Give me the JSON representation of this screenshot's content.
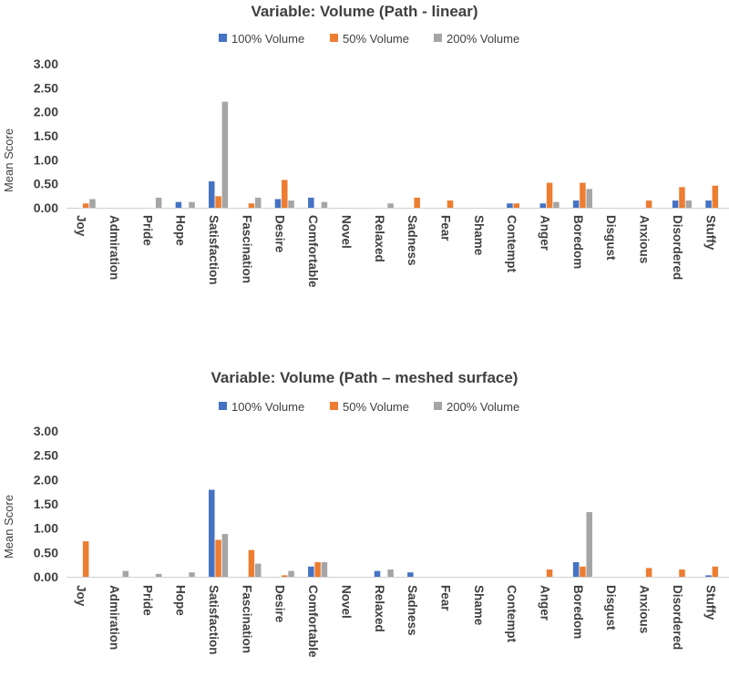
{
  "chart_data": [
    {
      "type": "bar",
      "title": "Variable: Volume (Path - linear)",
      "xlabel": "",
      "ylabel": "Mean Score",
      "ylim": [
        0,
        3
      ],
      "yticks": [
        "0.00",
        "0.50",
        "1.00",
        "1.50",
        "2.00",
        "2.50",
        "3.00"
      ],
      "legend_position": "top-center",
      "categories": [
        "Joy",
        "Admiration",
        "Pride",
        "Hope",
        "Satisfaction",
        "Fascination",
        "Desire",
        "Comfortable",
        "Novel",
        "Relaxed",
        "Sadness",
        "Fear",
        "Shame",
        "Contempt",
        "Anger",
        "Boredom",
        "Disgust",
        "Anxious",
        "Disordered",
        "Stuffy"
      ],
      "series": [
        {
          "name": "100% Volume",
          "color": "#4472C4",
          "values": [
            0,
            0,
            0,
            0.12,
            0.55,
            0,
            0.18,
            0.21,
            0,
            0,
            0,
            0,
            0,
            0.09,
            0.09,
            0.15,
            0,
            0,
            0.15,
            0.15
          ]
        },
        {
          "name": "50% Volume",
          "color": "#ED7D31",
          "values": [
            0.09,
            0,
            0,
            0,
            0.24,
            0.09,
            0.58,
            0,
            0,
            0,
            0.21,
            0.15,
            0,
            0.09,
            0.52,
            0.52,
            0,
            0.15,
            0.43,
            0.46
          ]
        },
        {
          "name": "200% Volume",
          "color": "#A5A5A5",
          "values": [
            0.18,
            0,
            0.21,
            0.12,
            2.21,
            0.21,
            0.15,
            0.12,
            0,
            0.09,
            0,
            0,
            0,
            0,
            0.12,
            0.39,
            0,
            0,
            0.15,
            0
          ]
        }
      ]
    },
    {
      "type": "bar",
      "title": "Variable: Volume (Path – meshed surface)",
      "xlabel": "",
      "ylabel": "Mean Score",
      "ylim": [
        0,
        3
      ],
      "yticks": [
        "0.00",
        "0.50",
        "1.00",
        "1.50",
        "2.00",
        "2.50",
        "3.00"
      ],
      "legend_position": "top-center",
      "categories": [
        "Joy",
        "Admiration",
        "Pride",
        "Hope",
        "Satisfaction",
        "Fascination",
        "Desire",
        "Comfortable",
        "Novel",
        "Relaxed",
        "Sadness",
        "Fear",
        "Shame",
        "Contempt",
        "Anger",
        "Boredom",
        "Disgust",
        "Anxious",
        "Disordered",
        "Stuffy"
      ],
      "series": [
        {
          "name": "100% Volume",
          "color": "#4472C4",
          "values": [
            0,
            0,
            0,
            0,
            1.79,
            0,
            0,
            0.21,
            0,
            0.12,
            0.09,
            0,
            0,
            0,
            0,
            0.3,
            0,
            0,
            0,
            0.03
          ]
        },
        {
          "name": "50% Volume",
          "color": "#ED7D31",
          "values": [
            0.73,
            0,
            0,
            0,
            0.76,
            0.55,
            0.03,
            0.3,
            0,
            0,
            0,
            0,
            0,
            0,
            0.15,
            0.21,
            0,
            0.18,
            0.15,
            0.21
          ]
        },
        {
          "name": "200% Volume",
          "color": "#A5A5A5",
          "values": [
            0,
            0.12,
            0.06,
            0.09,
            0.88,
            0.27,
            0.12,
            0.3,
            0,
            0.15,
            0,
            0,
            0,
            0,
            0,
            1.33,
            0,
            0,
            0,
            0
          ]
        }
      ]
    }
  ]
}
